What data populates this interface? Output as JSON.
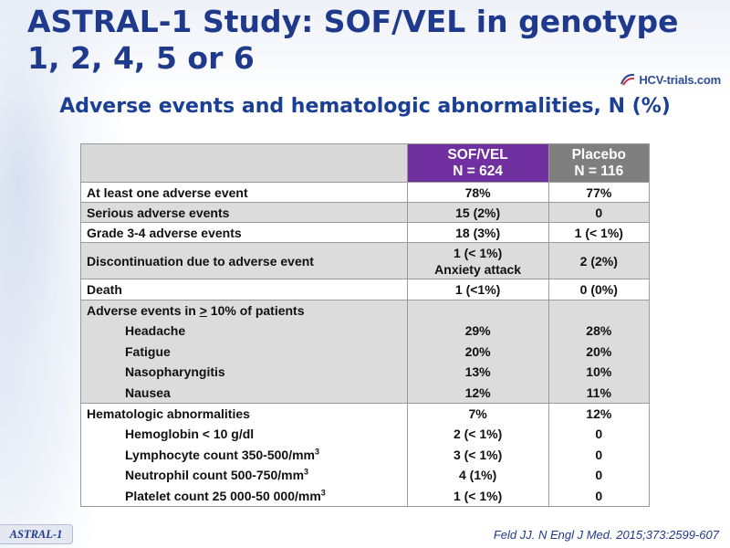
{
  "title": "ASTRAL-1 Study: SOF/VEL in genotype 1, 2, 4, 5 or 6",
  "logo_text": "HCV-trials.com",
  "subtitle": "Adverse events and hematologic abnormalities, N (%)",
  "table": {
    "col_sof": {
      "name": "SOF/VEL",
      "n": "N = 624"
    },
    "col_placebo": {
      "name": "Placebo",
      "n": "N = 116"
    },
    "rows": {
      "any_ae": {
        "label": "At least one adverse event",
        "sof": "78%",
        "placebo": "77%"
      },
      "serious": {
        "label": "Serious adverse events",
        "sof": "15 (2%)",
        "placebo": "0"
      },
      "grade34": {
        "label": "Grade 3-4 adverse events",
        "sof": "18 (3%)",
        "placebo": "1 (< 1%)"
      },
      "discontinuation": {
        "label": "Discontinuation due to adverse event",
        "sof": "1 (< 1%)",
        "sof_note": "Anxiety attack",
        "placebo": "2 (2%)"
      },
      "death": {
        "label": "Death",
        "sof": "1 (<1%)",
        "placebo": "0 (0%)"
      },
      "ae10": {
        "label_prefix": "Adverse events in ",
        "label_symbol": ">",
        "label_suffix": " 10% of patients",
        "items": [
          {
            "label": "Headache",
            "sof": "29%",
            "placebo": "28%"
          },
          {
            "label": "Fatigue",
            "sof": "20%",
            "placebo": "20%"
          },
          {
            "label": "Nasopharyngitis",
            "sof": "13%",
            "placebo": "10%"
          },
          {
            "label": "Nausea",
            "sof": "12%",
            "placebo": "11%"
          }
        ]
      },
      "hema": {
        "label": "Hematologic abnormalities",
        "sof": "7%",
        "placebo": "12%",
        "items": [
          {
            "label": "Hemoglobin < 10 g/dl",
            "sup": "",
            "sof": "2 (< 1%)",
            "placebo": "0"
          },
          {
            "label": "Lymphocyte count 350-500/mm",
            "sup": "3",
            "sof": "3 (< 1%)",
            "placebo": "0"
          },
          {
            "label": "Neutrophil count 500-750/mm",
            "sup": "3",
            "sof": "4 (1%)",
            "placebo": "0"
          },
          {
            "label": "Platelet count 25 000-50 000/mm",
            "sup": "3",
            "sof": "1 (< 1%)",
            "placebo": "0"
          }
        ]
      }
    }
  },
  "reference": "Feld JJ. N Engl J Med. 2015;373:2599-607",
  "badge": "ASTRAL-1",
  "colors": {
    "title": "#1f3a8c",
    "sof_header": "#7030a0",
    "placebo_header": "#7f7f7f",
    "row_grey": "#dcdcdc"
  }
}
